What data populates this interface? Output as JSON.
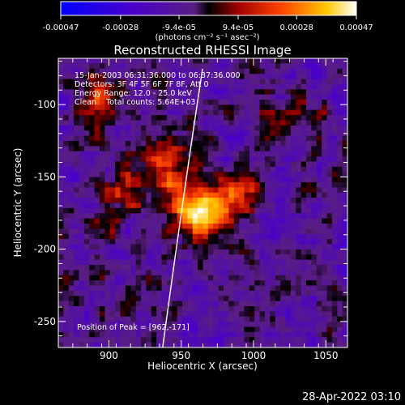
{
  "colorbar": {
    "ticks": [
      "-0.00047",
      "-0.00028",
      "-9.4e-05",
      "9.4e-05",
      "0.00028",
      "0.00047"
    ],
    "ticks_val": [
      -0.00047,
      -0.00028,
      -9.4e-05,
      9.4e-05,
      0.00028,
      0.00047
    ],
    "range": [
      -0.00047,
      0.00047
    ],
    "units": "(photons cm⁻² s⁻¹ asec⁻²)"
  },
  "chart_data": {
    "type": "heatmap",
    "title": "Reconstructed RHESSI Image",
    "xlabel": "Heliocentric X (arcsec)",
    "ylabel": "Heliocentric Y (arcsec)",
    "xlim": [
      865,
      1065
    ],
    "ylim": [
      -268,
      -68
    ],
    "xticks": [
      900,
      950,
      1000,
      1050
    ],
    "yticks": [
      -100,
      -150,
      -200,
      -250
    ],
    "annotations": [
      "15-Jan-2003 06:31:36.000 to 06:37:36.000",
      "Detectors: 3F 4F 5F 6F 7F 8F, Att 0",
      "Energy Range: 12.0 - 25.0 keV",
      "Clean    Total counts: 5.64E+03"
    ],
    "peak_label": "Position of Peak = [962,-171]",
    "peak": [
      962,
      -171
    ]
  },
  "footer": {
    "date": "28-Apr-2022 03:10"
  }
}
